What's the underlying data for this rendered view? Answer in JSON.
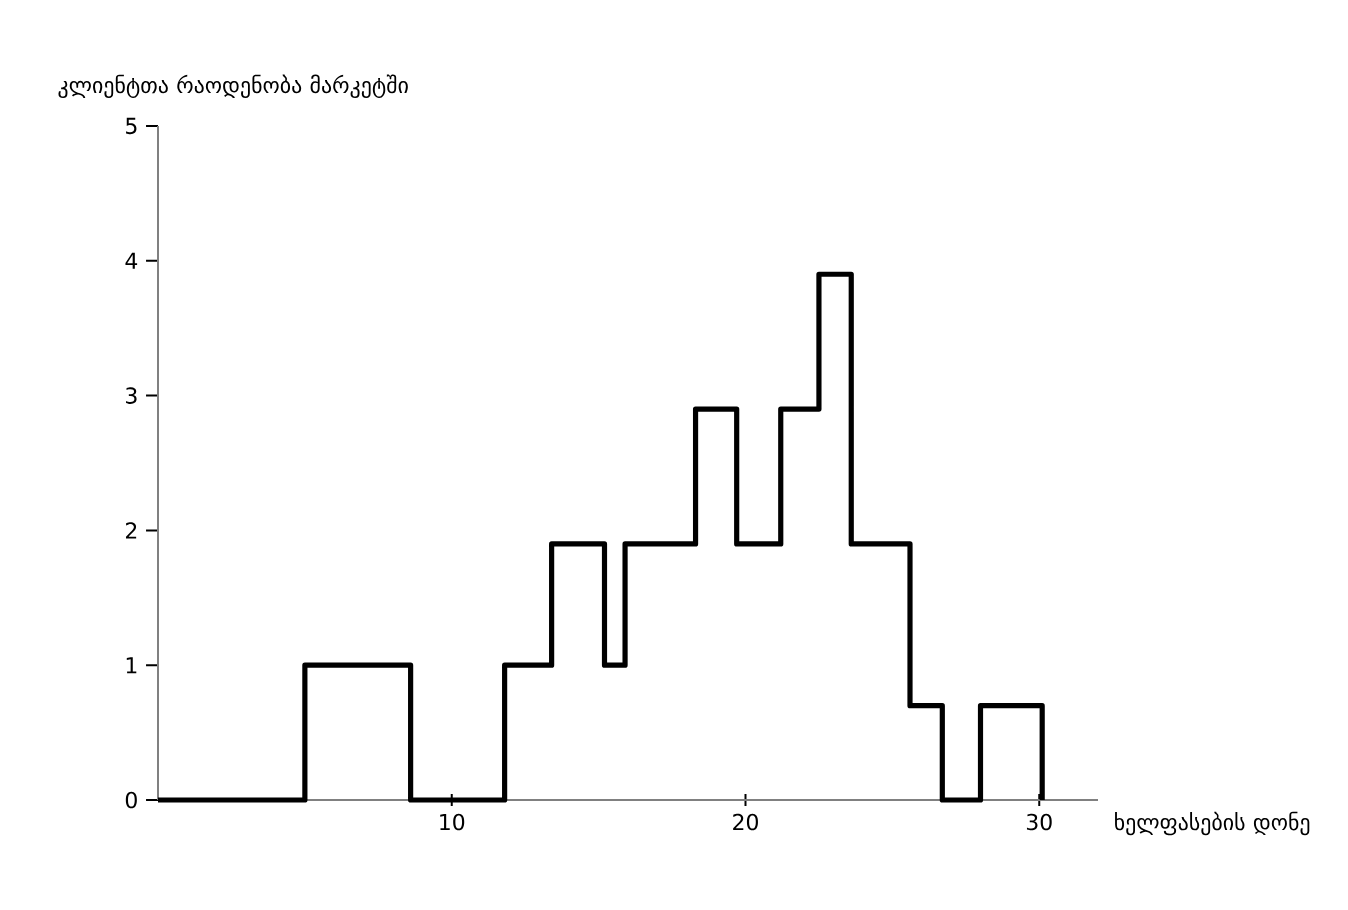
{
  "chart_data": {
    "type": "step",
    "xlabel": "ხელფასების დონე",
    "ylabel": "კლიენტთა რაოდენობა მარკეტში",
    "x": [
      0,
      5.0,
      8.6,
      11.8,
      13.4,
      15.2,
      15.9,
      18.3,
      19.7,
      21.2,
      22.5,
      23.6,
      25.6,
      26.7,
      28.0,
      30.1
    ],
    "values": [
      0,
      1,
      0,
      1,
      1.9,
      1,
      1.9,
      2.9,
      1.9,
      2.9,
      3.9,
      1.9,
      0.7,
      0,
      0.7,
      0
    ],
    "color": "#000000",
    "xlim": [
      0,
      32
    ],
    "ylim": [
      0,
      5
    ],
    "xticks": [
      10,
      20,
      30
    ],
    "yticks": [
      0,
      1,
      2,
      3,
      4,
      5
    ],
    "grid": false
  }
}
